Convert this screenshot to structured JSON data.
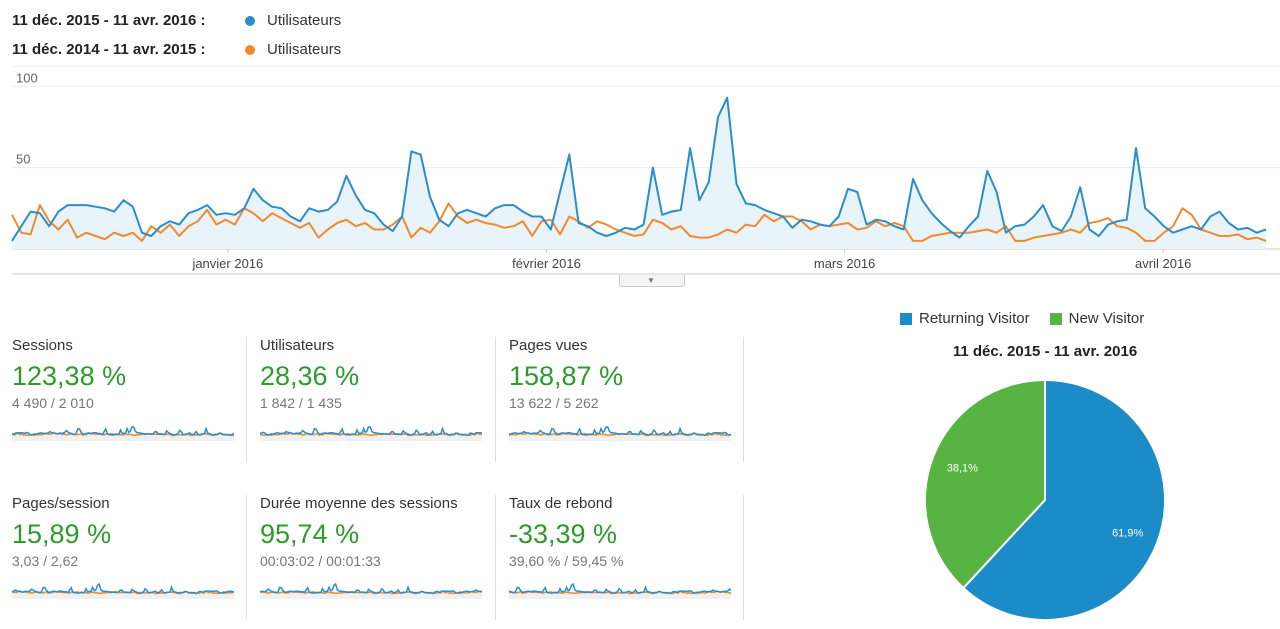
{
  "legend": [
    {
      "range": "11 déc. 2015 - 11 avr. 2016 :",
      "label": "Utilisateurs",
      "color": "#2a8dcc"
    },
    {
      "range": "11 déc. 2014 - 11 avr. 2015 :",
      "label": "Utilisateurs",
      "color": "#f08a2b"
    }
  ],
  "chart_data": [
    {
      "type": "area",
      "ylim": [
        0,
        110
      ],
      "y_ticks": [
        "100",
        "50"
      ],
      "x_tick_labels": [
        "janvier 2016",
        "février 2016",
        "mars 2016",
        "avril 2016"
      ],
      "x_tick_days": [
        21,
        52,
        81,
        112
      ],
      "day_count": 123,
      "grid": true,
      "series": [
        {
          "name": "11 déc. 2015 - 11 avr. 2016",
          "color": "#2a8dcc",
          "values": [
            5,
            14,
            23,
            22,
            14,
            23,
            27,
            27,
            27,
            26,
            25,
            23,
            30,
            26,
            10,
            8,
            14,
            17,
            15,
            22,
            24,
            27,
            21,
            22,
            21,
            25,
            37,
            30,
            26,
            25,
            20,
            17,
            25,
            23,
            24,
            29,
            45,
            33,
            24,
            22,
            15,
            11,
            20,
            60,
            58,
            32,
            18,
            14,
            22,
            24,
            22,
            20,
            25,
            27,
            27,
            23,
            20,
            20,
            12,
            35,
            58,
            16,
            14,
            10,
            8,
            10,
            13,
            12,
            15,
            50,
            21,
            23,
            24,
            62,
            30,
            41,
            81,
            93,
            40,
            28,
            27,
            24,
            22,
            20,
            13,
            18,
            17,
            15,
            14,
            20,
            37,
            35,
            15,
            18,
            17,
            14,
            12,
            43,
            30,
            22,
            16,
            11,
            7,
            14,
            20,
            48,
            35,
            10,
            14,
            15,
            20,
            27,
            14,
            11,
            20,
            38,
            12,
            8,
            15,
            17,
            18,
            62,
            25,
            20,
            14,
            10,
            12,
            14,
            12,
            20,
            23,
            16,
            12,
            13,
            10,
            12
          ]
        },
        {
          "name": "11 déc. 2014 - 11 avr. 2015",
          "color": "#f08a2b",
          "values": [
            21,
            10,
            9,
            27,
            17,
            12,
            18,
            7,
            10,
            8,
            6,
            10,
            8,
            10,
            5,
            14,
            10,
            15,
            8,
            14,
            17,
            24,
            15,
            18,
            15,
            25,
            22,
            17,
            22,
            19,
            16,
            13,
            16,
            7,
            12,
            16,
            18,
            14,
            16,
            12,
            12,
            15,
            20,
            7,
            13,
            10,
            17,
            28,
            20,
            16,
            18,
            16,
            15,
            13,
            14,
            17,
            8,
            17,
            18,
            9,
            20,
            17,
            13,
            17,
            15,
            12,
            10,
            8,
            9,
            18,
            16,
            12,
            14,
            8,
            7,
            7,
            9,
            12,
            10,
            15,
            14,
            21,
            17,
            20,
            20,
            17,
            12,
            15,
            14,
            15,
            16,
            12,
            13,
            17,
            14,
            16,
            14,
            5,
            5,
            8,
            9,
            10,
            10,
            10,
            11,
            12,
            10,
            14,
            5,
            5,
            7,
            8,
            9,
            10,
            12,
            10,
            16,
            17,
            19,
            14,
            13,
            10,
            5,
            5,
            10,
            14,
            25,
            21,
            12,
            10,
            8,
            8,
            9,
            6,
            7,
            5
          ]
        }
      ]
    },
    {
      "type": "pie",
      "title": "11 déc. 2015 - 11 avr. 2016",
      "slices": [
        {
          "label": "Returning Visitor",
          "value": 61.9,
          "text": "61,9%",
          "color": "#1b8cc7"
        },
        {
          "label": "New Visitor",
          "value": 38.1,
          "text": "38,1%",
          "color": "#57b442"
        }
      ]
    }
  ],
  "metrics": [
    {
      "name": "Sessions",
      "pct": "123,38 %",
      "cmp": "4 490 / 2 010"
    },
    {
      "name": "Utilisateurs",
      "pct": "28,36 %",
      "cmp": "1 842 / 1 435"
    },
    {
      "name": "Pages vues",
      "pct": "158,87 %",
      "cmp": "13 622 / 5 262"
    },
    {
      "name": "Pages/session",
      "pct": "15,89 %",
      "cmp": "3,03 / 2,62"
    },
    {
      "name": "Durée moyenne des sessions",
      "pct": "95,74 %",
      "cmp": "00:03:02 / 00:01:33"
    },
    {
      "name": "Taux de rebond",
      "pct": "-33,39 %",
      "cmp": "39,60 % / 59,45 %"
    }
  ]
}
